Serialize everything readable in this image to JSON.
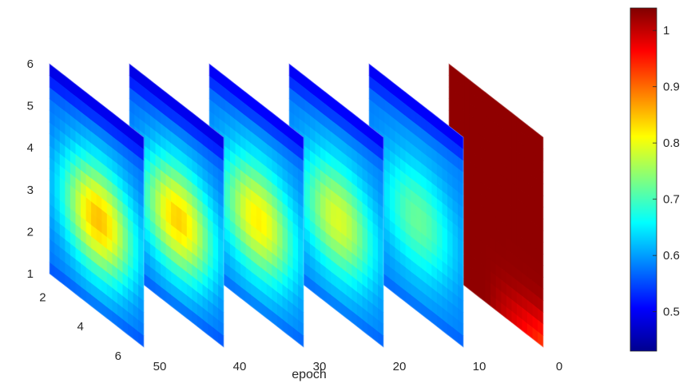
{
  "chart_data": {
    "type": "heatmap",
    "title": "",
    "xlabel": "epoch",
    "x_ticks": [
      "0",
      "10",
      "20",
      "30",
      "40",
      "50"
    ],
    "y_ticks": [
      "2",
      "4",
      "6"
    ],
    "z_ticks": [
      "1",
      "2",
      "3",
      "4",
      "5",
      "6"
    ],
    "colorbar": {
      "ticks": [
        "0.5",
        "0.6",
        "0.7",
        "0.8",
        "0.9",
        "1"
      ],
      "range": [
        0.43,
        1.04
      ],
      "colormap": "jet"
    },
    "slices": [
      {
        "epoch": 0,
        "peak": 1.03,
        "edge": 0.95
      },
      {
        "epoch": 10,
        "peak": 0.72,
        "edge": 0.58
      },
      {
        "epoch": 20,
        "peak": 0.79,
        "edge": 0.58
      },
      {
        "epoch": 30,
        "peak": 0.82,
        "edge": 0.58
      },
      {
        "epoch": 40,
        "peak": 0.84,
        "edge": 0.57
      },
      {
        "epoch": 50,
        "peak": 0.85,
        "edge": 0.57
      }
    ]
  }
}
